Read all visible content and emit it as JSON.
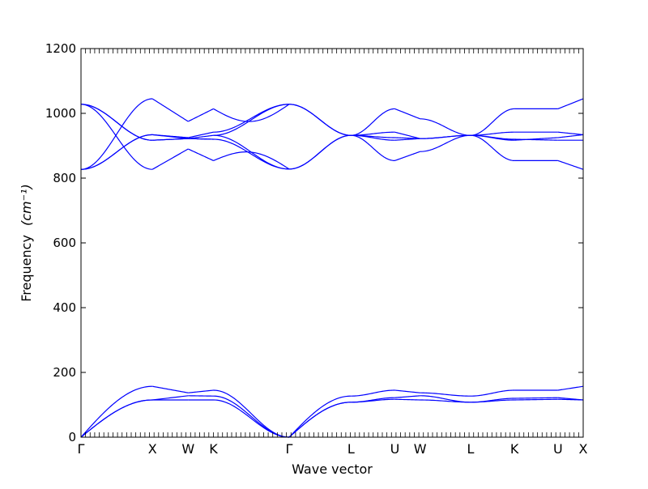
{
  "chart_data": {
    "type": "line",
    "title": "",
    "xlabel": "Wave vector",
    "ylabel": "Frequency",
    "ylabel_unit": "(cm⁻¹)",
    "ylim": [
      0,
      1200
    ],
    "yticks": [
      0,
      200,
      400,
      600,
      800,
      1000,
      1200
    ],
    "high_symmetry_points": [
      {
        "label": "Γ",
        "position": 0
      },
      {
        "label": "X",
        "position": 1.0
      },
      {
        "label": "W",
        "position": 1.5
      },
      {
        "label": "K",
        "position": 1.854
      },
      {
        "label": "Γ",
        "position": 2.914
      },
      {
        "label": "L",
        "position": 3.78
      },
      {
        "label": "U",
        "position": 4.393
      },
      {
        "label": "W",
        "position": 4.747
      },
      {
        "label": "L",
        "position": 5.454
      },
      {
        "label": "K",
        "position": 6.067
      },
      {
        "label": "U",
        "position": 6.677
      },
      {
        "label": "X",
        "position": 7.03
      }
    ],
    "line_color": "#0000ff",
    "grid": false,
    "segments": [
      {
        "from": "Γ",
        "to": "X",
        "branches": [
          {
            "start": 0,
            "end": 157,
            "shape": "sin"
          },
          {
            "start": 0,
            "end": 115,
            "shape": "sin"
          },
          {
            "start": 0,
            "end": 115,
            "shape": "sin"
          },
          {
            "start": 1028,
            "end": 827,
            "shape": "cos"
          },
          {
            "start": 1028,
            "end": 917,
            "shape": "cos"
          },
          {
            "start": 1028,
            "end": 917,
            "shape": "cos"
          },
          {
            "start": 827,
            "end": 1045,
            "shape": "cos"
          },
          {
            "start": 827,
            "end": 934,
            "shape": "cos"
          },
          {
            "start": 827,
            "end": 934,
            "shape": "cos"
          }
        ]
      },
      {
        "from": "X",
        "to": "W",
        "branches": [
          {
            "start": 157,
            "end": 137,
            "shape": "lin"
          },
          {
            "start": 115,
            "end": 115,
            "shape": "lin"
          },
          {
            "start": 115,
            "end": 128,
            "shape": "lin"
          },
          {
            "start": 827,
            "end": 890,
            "shape": "lin"
          },
          {
            "start": 917,
            "end": 922,
            "shape": "lin"
          },
          {
            "start": 917,
            "end": 922,
            "shape": "lin"
          },
          {
            "start": 1045,
            "end": 975,
            "shape": "lin"
          },
          {
            "start": 934,
            "end": 925,
            "shape": "lin"
          },
          {
            "start": 934,
            "end": 922,
            "shape": "lin"
          }
        ]
      },
      {
        "from": "W",
        "to": "K",
        "branches": [
          {
            "start": 137,
            "end": 145,
            "shape": "lin"
          },
          {
            "start": 115,
            "end": 115,
            "shape": "lin"
          },
          {
            "start": 128,
            "end": 127,
            "shape": "lin"
          },
          {
            "start": 890,
            "end": 854,
            "shape": "lin"
          },
          {
            "start": 922,
            "end": 920,
            "shape": "lin"
          },
          {
            "start": 922,
            "end": 920,
            "shape": "lin"
          },
          {
            "start": 975,
            "end": 1014,
            "shape": "lin"
          },
          {
            "start": 925,
            "end": 942,
            "shape": "lin"
          },
          {
            "start": 922,
            "end": 932,
            "shape": "lin"
          }
        ]
      },
      {
        "from": "K",
        "to": "Γ",
        "branches": [
          {
            "start": 145,
            "end": 0,
            "shape": "cos"
          },
          {
            "start": 115,
            "end": 0,
            "shape": "cos"
          },
          {
            "start": 127,
            "end": 0,
            "shape": "cos"
          },
          {
            "start": 854,
            "end": 828,
            "shape": "bump",
            "peak": 880
          },
          {
            "start": 920,
            "end": 828,
            "shape": "cos"
          },
          {
            "start": 932,
            "end": 1028,
            "shape": "cos"
          },
          {
            "start": 1014,
            "end": 1028,
            "shape": "dip",
            "peak": 975
          },
          {
            "start": 942,
            "end": 1028,
            "shape": "cos"
          },
          {
            "start": 932,
            "end": 828,
            "shape": "cos"
          }
        ]
      },
      {
        "from": "Γ",
        "to": "L",
        "branches": [
          {
            "start": 0,
            "end": 127,
            "shape": "sin"
          },
          {
            "start": 0,
            "end": 108,
            "shape": "sin"
          },
          {
            "start": 0,
            "end": 108,
            "shape": "sin"
          },
          {
            "start": 1028,
            "end": 932,
            "shape": "cos"
          },
          {
            "start": 1028,
            "end": 932,
            "shape": "cos"
          },
          {
            "start": 828,
            "end": 932,
            "shape": "cos"
          },
          {
            "start": 828,
            "end": 932,
            "shape": "cos"
          }
        ]
      },
      {
        "from": "L",
        "to": "U",
        "branches": [
          {
            "start": 127,
            "end": 145,
            "shape": "cos"
          },
          {
            "start": 108,
            "end": 122,
            "shape": "cos"
          },
          {
            "start": 108,
            "end": 117,
            "shape": "cos"
          },
          {
            "start": 932,
            "end": 854,
            "shape": "cos"
          },
          {
            "start": 932,
            "end": 917,
            "shape": "cos"
          },
          {
            "start": 932,
            "end": 1014,
            "shape": "cos"
          },
          {
            "start": 932,
            "end": 942,
            "shape": "cos"
          },
          {
            "start": 932,
            "end": 925,
            "shape": "cos"
          }
        ]
      },
      {
        "from": "U",
        "to": "W",
        "branches": [
          {
            "start": 145,
            "end": 137,
            "shape": "lin"
          },
          {
            "start": 122,
            "end": 128,
            "shape": "lin"
          },
          {
            "start": 117,
            "end": 115,
            "shape": "lin"
          },
          {
            "start": 854,
            "end": 882,
            "shape": "lin"
          },
          {
            "start": 917,
            "end": 922,
            "shape": "lin"
          },
          {
            "start": 1014,
            "end": 983,
            "shape": "lin"
          },
          {
            "start": 942,
            "end": 922,
            "shape": "lin"
          },
          {
            "start": 925,
            "end": 922,
            "shape": "lin"
          }
        ]
      },
      {
        "from": "W",
        "to": "L",
        "branches": [
          {
            "start": 137,
            "end": 127,
            "shape": "cos"
          },
          {
            "start": 128,
            "end": 108,
            "shape": "cos"
          },
          {
            "start": 115,
            "end": 108,
            "shape": "cos"
          },
          {
            "start": 882,
            "end": 932,
            "shape": "cos"
          },
          {
            "start": 922,
            "end": 932,
            "shape": "cos"
          },
          {
            "start": 983,
            "end": 932,
            "shape": "cos"
          },
          {
            "start": 922,
            "end": 932,
            "shape": "cos"
          }
        ]
      },
      {
        "from": "L",
        "to": "K",
        "branches": [
          {
            "start": 127,
            "end": 145,
            "shape": "cos"
          },
          {
            "start": 108,
            "end": 120,
            "shape": "cos"
          },
          {
            "start": 108,
            "end": 115,
            "shape": "cos"
          },
          {
            "start": 932,
            "end": 854,
            "shape": "cos"
          },
          {
            "start": 932,
            "end": 920,
            "shape": "cos"
          },
          {
            "start": 932,
            "end": 1014,
            "shape": "cos"
          },
          {
            "start": 932,
            "end": 942,
            "shape": "cos"
          },
          {
            "start": 932,
            "end": 917,
            "shape": "cos"
          }
        ]
      },
      {
        "from": "K",
        "to": "U",
        "branches": [
          {
            "start": 145,
            "end": 145,
            "shape": "lin"
          },
          {
            "start": 120,
            "end": 122,
            "shape": "lin"
          },
          {
            "start": 115,
            "end": 117,
            "shape": "lin"
          },
          {
            "start": 854,
            "end": 854,
            "shape": "lin"
          },
          {
            "start": 920,
            "end": 917,
            "shape": "lin"
          },
          {
            "start": 1014,
            "end": 1014,
            "shape": "lin"
          },
          {
            "start": 942,
            "end": 942,
            "shape": "lin"
          },
          {
            "start": 917,
            "end": 925,
            "shape": "lin"
          }
        ]
      },
      {
        "from": "U",
        "to": "X",
        "branches": [
          {
            "start": 145,
            "end": 157,
            "shape": "lin"
          },
          {
            "start": 122,
            "end": 115,
            "shape": "lin"
          },
          {
            "start": 117,
            "end": 115,
            "shape": "lin"
          },
          {
            "start": 854,
            "end": 827,
            "shape": "lin"
          },
          {
            "start": 917,
            "end": 917,
            "shape": "lin"
          },
          {
            "start": 1014,
            "end": 1045,
            "shape": "lin"
          },
          {
            "start": 942,
            "end": 934,
            "shape": "lin"
          },
          {
            "start": 925,
            "end": 934,
            "shape": "lin"
          }
        ]
      }
    ]
  }
}
